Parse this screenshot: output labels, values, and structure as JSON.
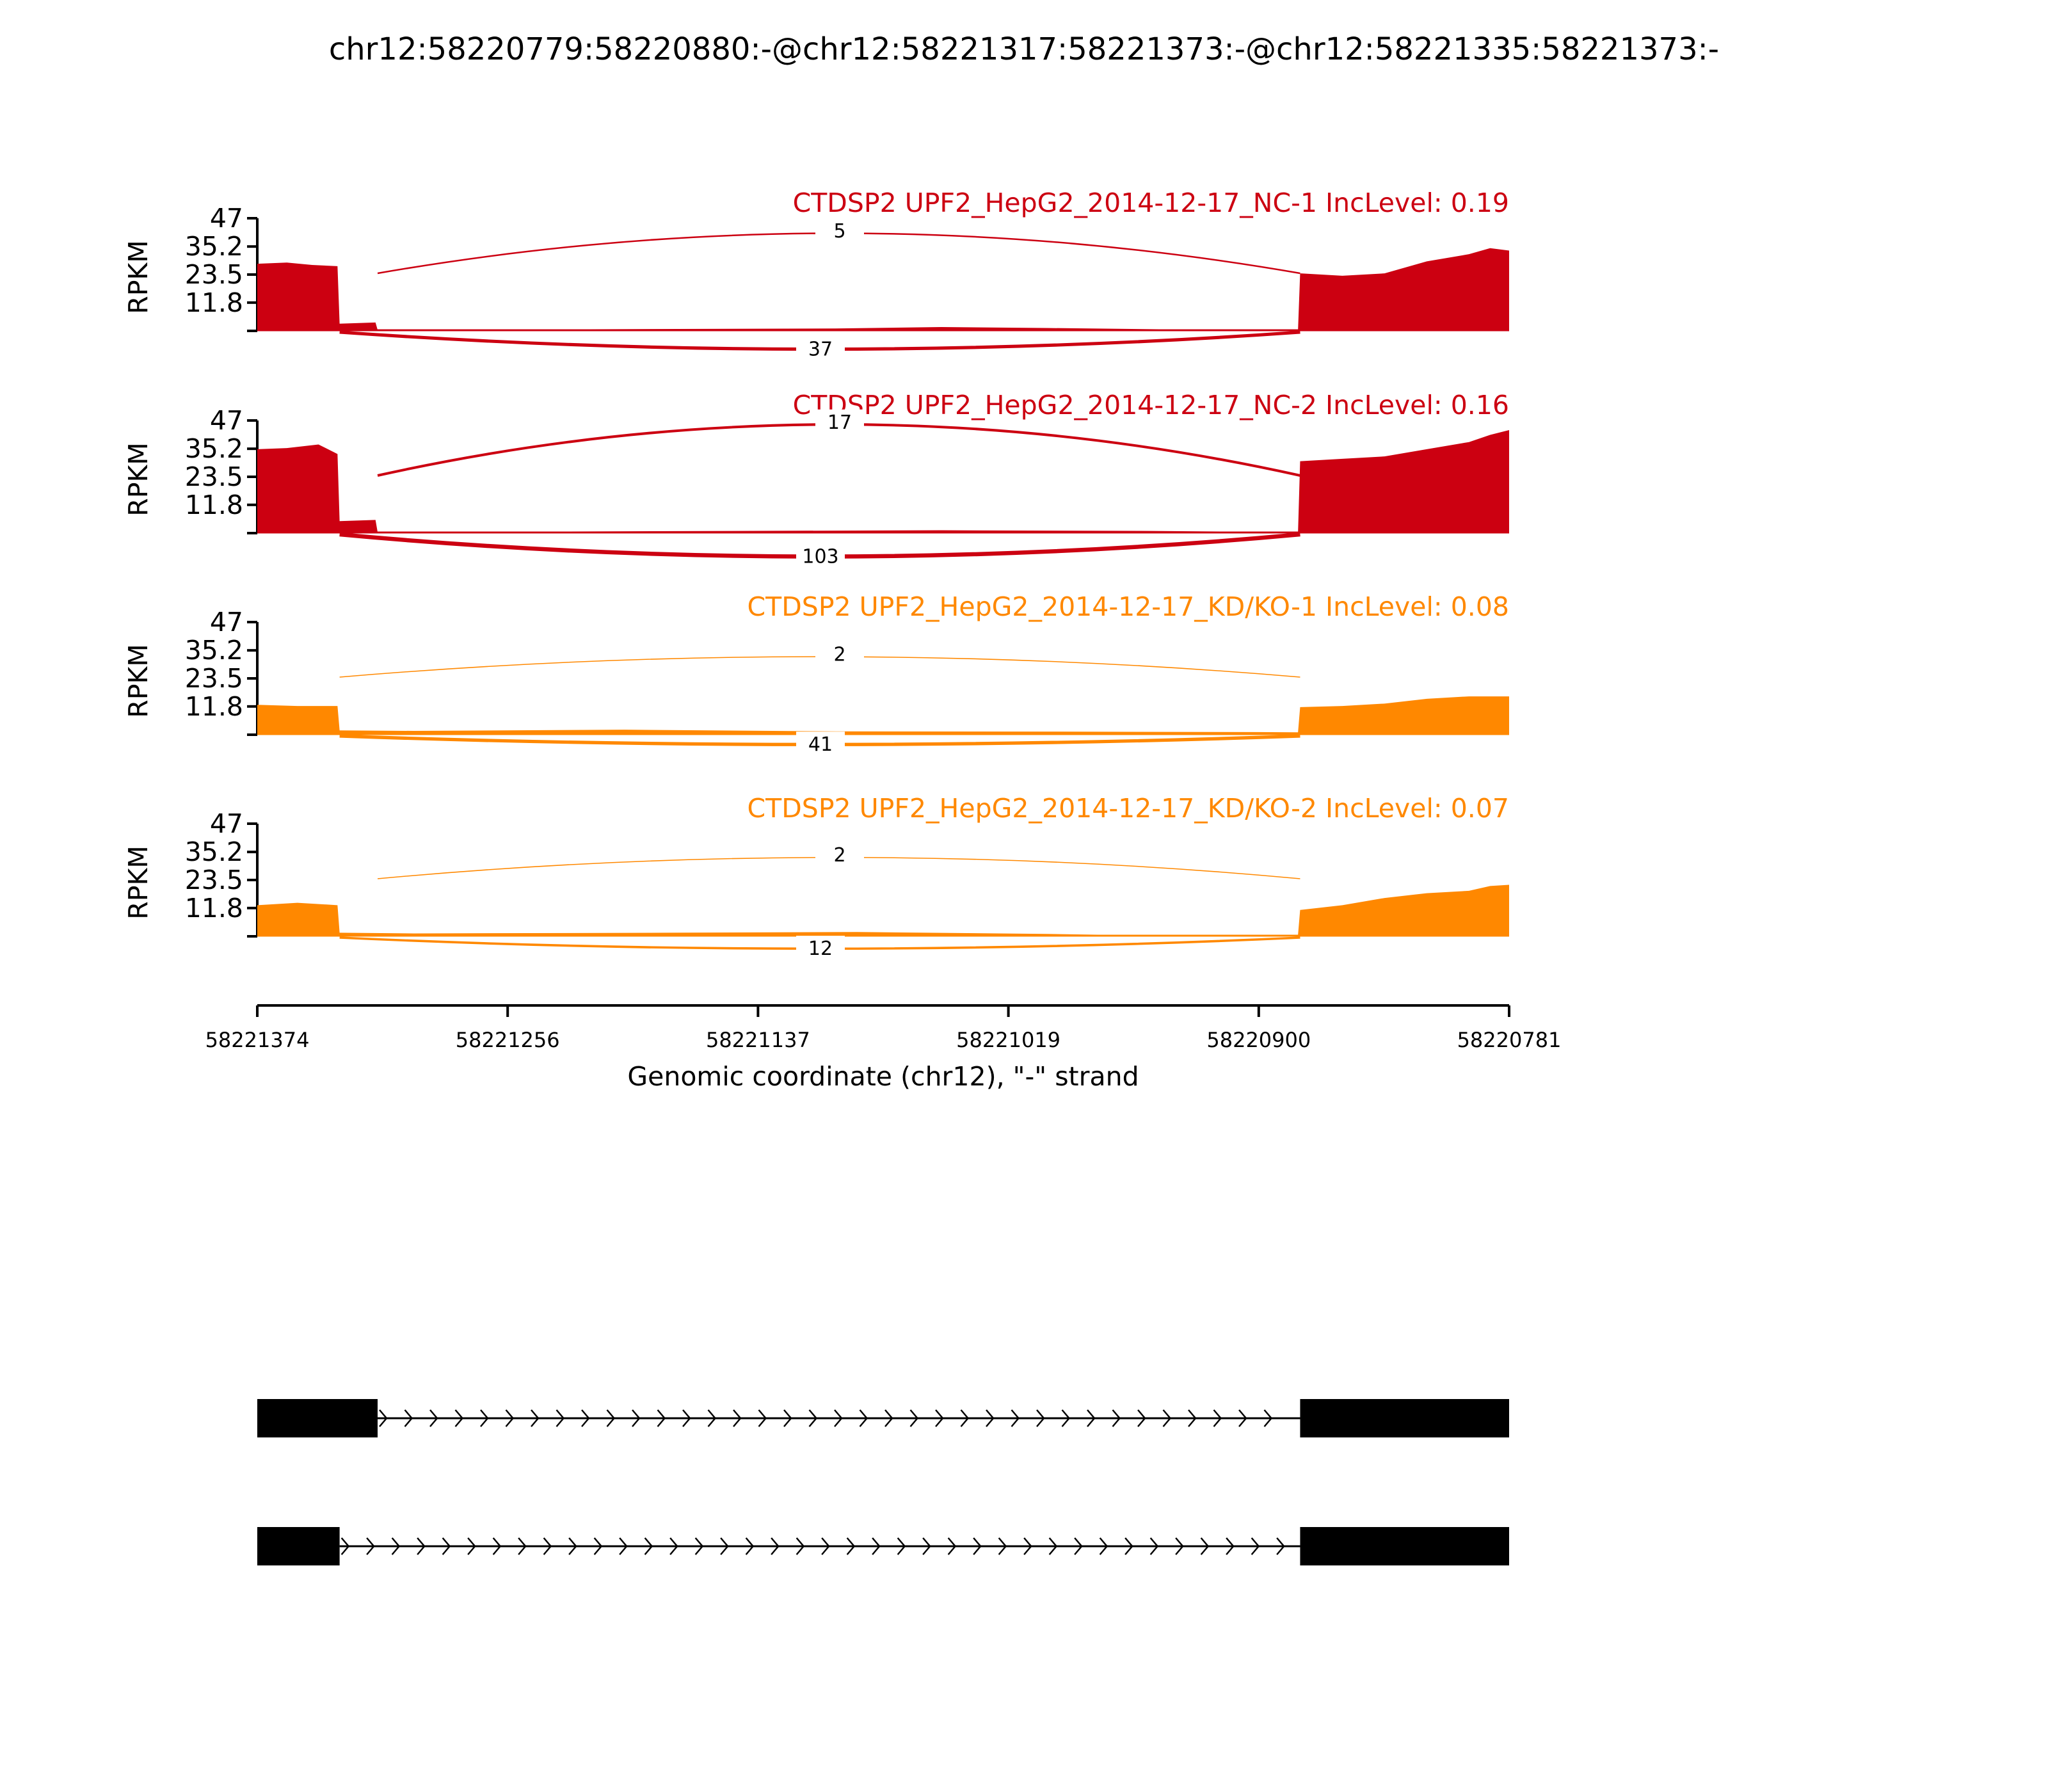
{
  "figure": {
    "title": "chr12:58220779:58220880:-@chr12:58221317:58221373:-@chr12:58221335:58221373:-"
  },
  "colors": {
    "nc": "#cc0011",
    "kd": "#ff8800",
    "text": "#000000",
    "gene": "#000000"
  },
  "chart_data": {
    "type": "area",
    "title": "chr12:58220779:58220880:-@chr12:58221317:58221373:-@chr12:58221335:58221373:-",
    "xlabel": "Genomic coordinate (chr12), \"-\" strand",
    "xlim": [
      58221374,
      58220781
    ],
    "x_ticks": [
      "58221374",
      "58221256",
      "58221137",
      "58221019",
      "58220900",
      "58220781"
    ],
    "ylabel": "RPKM",
    "ylim": [
      0,
      47
    ],
    "y_ticks": [
      "47",
      "35.2",
      "23.5",
      "11.8"
    ],
    "exons": {
      "upstream": [
        58221374,
        58221335
      ],
      "alternative": [
        58221335,
        58221317
      ],
      "downstream": [
        58220880,
        58220781
      ]
    },
    "series": [
      {
        "name": "CTDSP2 UPF2_HepG2_2014-12-17_NC-1 IncLevel: 0.19",
        "group": "nc",
        "coverage": [
          {
            "x": 58221374,
            "y": 28
          },
          {
            "x": 58221360,
            "y": 28.5
          },
          {
            "x": 58221348,
            "y": 27.5
          },
          {
            "x": 58221336,
            "y": 27
          },
          {
            "x": 58221335,
            "y": 3
          },
          {
            "x": 58221318,
            "y": 3.5
          },
          {
            "x": 58221317,
            "y": 0.4
          },
          {
            "x": 58221100,
            "y": 1.0
          },
          {
            "x": 58221050,
            "y": 1.6
          },
          {
            "x": 58221000,
            "y": 1.2
          },
          {
            "x": 58220930,
            "y": 0.5
          },
          {
            "x": 58220881,
            "y": 0.4
          },
          {
            "x": 58220880,
            "y": 24
          },
          {
            "x": 58220860,
            "y": 23
          },
          {
            "x": 58220840,
            "y": 24
          },
          {
            "x": 58220820,
            "y": 29
          },
          {
            "x": 58220800,
            "y": 32
          },
          {
            "x": 58220790,
            "y": 34.5
          },
          {
            "x": 58220781,
            "y": 33.5
          }
        ],
        "junctions": [
          {
            "from": 58221317,
            "to": 58220880,
            "reads": 5,
            "position": "above"
          },
          {
            "from": 58221335,
            "to": 58220880,
            "reads": 37,
            "position": "below"
          }
        ]
      },
      {
        "name": "CTDSP2 UPF2_HepG2_2014-12-17_NC-2 IncLevel: 0.16",
        "group": "nc",
        "coverage": [
          {
            "x": 58221374,
            "y": 35
          },
          {
            "x": 58221360,
            "y": 35.5
          },
          {
            "x": 58221345,
            "y": 37
          },
          {
            "x": 58221336,
            "y": 33
          },
          {
            "x": 58221335,
            "y": 5
          },
          {
            "x": 58221318,
            "y": 5.5
          },
          {
            "x": 58221317,
            "y": 0.4
          },
          {
            "x": 58221150,
            "y": 0.9
          },
          {
            "x": 58221050,
            "y": 1.2
          },
          {
            "x": 58220950,
            "y": 0.9
          },
          {
            "x": 58220881,
            "y": 0.4
          },
          {
            "x": 58220880,
            "y": 30
          },
          {
            "x": 58220860,
            "y": 31
          },
          {
            "x": 58220840,
            "y": 32
          },
          {
            "x": 58220820,
            "y": 35
          },
          {
            "x": 58220800,
            "y": 38
          },
          {
            "x": 58220790,
            "y": 41
          },
          {
            "x": 58220781,
            "y": 43
          }
        ],
        "junctions": [
          {
            "from": 58221317,
            "to": 58220880,
            "reads": 17,
            "position": "above"
          },
          {
            "from": 58221335,
            "to": 58220880,
            "reads": 103,
            "position": "below"
          }
        ]
      },
      {
        "name": "CTDSP2 UPF2_HepG2_2014-12-17_KD/KO-1 IncLevel: 0.08",
        "group": "kd",
        "coverage": [
          {
            "x": 58221374,
            "y": 12.5
          },
          {
            "x": 58221355,
            "y": 12
          },
          {
            "x": 58221336,
            "y": 12
          },
          {
            "x": 58221335,
            "y": 1.8
          },
          {
            "x": 58221300,
            "y": 1.6
          },
          {
            "x": 58221200,
            "y": 2.1
          },
          {
            "x": 58221100,
            "y": 1.4
          },
          {
            "x": 58221000,
            "y": 1.3
          },
          {
            "x": 58220900,
            "y": 1.1
          },
          {
            "x": 58220881,
            "y": 1.0
          },
          {
            "x": 58220880,
            "y": 11.5
          },
          {
            "x": 58220860,
            "y": 12
          },
          {
            "x": 58220840,
            "y": 13
          },
          {
            "x": 58220820,
            "y": 15
          },
          {
            "x": 58220800,
            "y": 16
          },
          {
            "x": 58220781,
            "y": 16
          }
        ],
        "junctions": [
          {
            "from": 58221335,
            "to": 58220880,
            "reads": 2,
            "position": "above"
          },
          {
            "from": 58221335,
            "to": 58220880,
            "reads": 41,
            "position": "below"
          }
        ]
      },
      {
        "name": "CTDSP2 UPF2_HepG2_2014-12-17_KD/KO-2 IncLevel: 0.07",
        "group": "kd",
        "coverage": [
          {
            "x": 58221374,
            "y": 13
          },
          {
            "x": 58221355,
            "y": 14
          },
          {
            "x": 58221336,
            "y": 13
          },
          {
            "x": 58221335,
            "y": 1.5
          },
          {
            "x": 58221300,
            "y": 1.2
          },
          {
            "x": 58221180,
            "y": 1.5
          },
          {
            "x": 58221090,
            "y": 1.8
          },
          {
            "x": 58221000,
            "y": 1.0
          },
          {
            "x": 58220950,
            "y": 0.3
          },
          {
            "x": 58220881,
            "y": 0.6
          },
          {
            "x": 58220880,
            "y": 11
          },
          {
            "x": 58220860,
            "y": 13
          },
          {
            "x": 58220840,
            "y": 16
          },
          {
            "x": 58220820,
            "y": 18
          },
          {
            "x": 58220800,
            "y": 19
          },
          {
            "x": 58220790,
            "y": 21
          },
          {
            "x": 58220781,
            "y": 21.5
          }
        ],
        "junctions": [
          {
            "from": 58221317,
            "to": 58220880,
            "reads": 2,
            "position": "above"
          },
          {
            "from": 58221335,
            "to": 58220880,
            "reads": 12,
            "position": "below"
          }
        ]
      }
    ],
    "isoforms": [
      {
        "exons": [
          [
            58221374,
            58221317
          ],
          [
            58220880,
            58220781
          ]
        ]
      },
      {
        "exons": [
          [
            58221374,
            58221335
          ],
          [
            58220880,
            58220781
          ]
        ]
      }
    ]
  }
}
